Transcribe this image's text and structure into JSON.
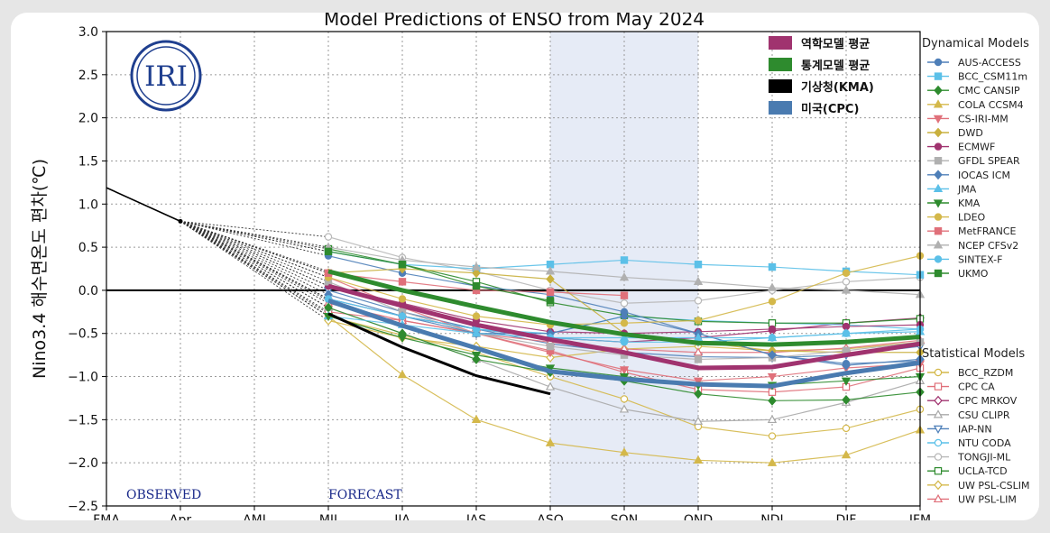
{
  "chart_data": {
    "type": "line",
    "title": "Model Predictions of ENSO from May 2024",
    "ylabel": "Nino3.4 해수면온도 편차(℃)",
    "xlabel": "",
    "categories": [
      "FMA",
      "Apr",
      "AMJ",
      "MJJ",
      "JJA",
      "JAS",
      "ASO",
      "SON",
      "OND",
      "NDJ",
      "DJF",
      "JFM"
    ],
    "ylim": [
      -2.5,
      3.0
    ],
    "yticks": [
      "3.0",
      "2.5",
      "2.0",
      "1.5",
      "1.0",
      "0.5",
      "0.0",
      "−0.5",
      "−1.0",
      "−1.5",
      "−2.0",
      "−2.5"
    ],
    "observed_label": "OBSERVED",
    "forecast_label": "FORECAST",
    "logo_text": "IRI",
    "highlight_range": [
      "ASO",
      "OND"
    ],
    "observed": {
      "x": [
        0,
        1
      ],
      "values": [
        1.19,
        0.8
      ]
    },
    "summary_series": [
      {
        "name": "역학모델 평균",
        "color": "#a0336f",
        "x": [
          3,
          4,
          5,
          6,
          7,
          8,
          9,
          10,
          11
        ],
        "values": [
          0.05,
          -0.18,
          -0.4,
          -0.57,
          -0.72,
          -0.9,
          -0.89,
          -0.75,
          -0.62
        ]
      },
      {
        "name": "통계모델 평균",
        "color": "#2e8b2e",
        "x": [
          3,
          4,
          5,
          6,
          7,
          8,
          9,
          10,
          11
        ],
        "values": [
          0.22,
          0.0,
          -0.19,
          -0.37,
          -0.51,
          -0.61,
          -0.63,
          -0.6,
          -0.54
        ]
      },
      {
        "name": "기상청(KMA)",
        "color": "#000000",
        "x": [
          3,
          4,
          5,
          6
        ],
        "values": [
          -0.27,
          -0.66,
          -0.99,
          -1.2
        ]
      },
      {
        "name": "미국(CPC)",
        "color": "#4a7bb0",
        "x": [
          3,
          4,
          5,
          6,
          7,
          8,
          9,
          10,
          11
        ],
        "values": [
          -0.12,
          -0.41,
          -0.67,
          -0.94,
          -1.03,
          -1.09,
          -1.11,
          -0.96,
          -0.84
        ]
      }
    ],
    "dynamical_title": "Dynamical Models",
    "dynamical": [
      {
        "name": "AUS-ACCESS",
        "color": "#4e7fb8",
        "marker": "o",
        "fill": true,
        "values": [
          0.4,
          0.2,
          0.05,
          -0.05,
          -0.25,
          -0.5,
          -0.75,
          -0.85,
          -0.82
        ]
      },
      {
        "name": "BCC_CSM11m",
        "color": "#5bc0e8",
        "marker": "s",
        "fill": true,
        "values": [
          0.45,
          0.3,
          0.25,
          0.3,
          0.35,
          0.3,
          0.27,
          0.22,
          0.18
        ]
      },
      {
        "name": "CMC CANSIP",
        "color": "#2e8b2e",
        "marker": "D",
        "fill": true,
        "values": [
          -0.2,
          -0.5,
          -0.8,
          -0.95,
          -1.05,
          -1.2,
          -1.28,
          -1.27,
          -1.18
        ]
      },
      {
        "name": "COLA CCSM4",
        "color": "#d4b84a",
        "marker": "^",
        "fill": true,
        "values": [
          -0.3,
          -0.98,
          -1.5,
          -1.77,
          -1.88,
          -1.97,
          -2.0,
          -1.91,
          -1.62
        ]
      },
      {
        "name": "CS-IRI-MM",
        "color": "#e0707a",
        "marker": "v",
        "fill": true,
        "values": [
          0.15,
          -0.2,
          -0.5,
          -0.72,
          -0.92,
          -1.05,
          -1.0,
          -0.9,
          -0.85
        ]
      },
      {
        "name": "DWD",
        "color": "#c9b03e",
        "marker": "D",
        "fill": true,
        "values": [
          0.2,
          0.25,
          0.2,
          0.13,
          -0.5,
          -0.6,
          -0.7,
          -0.72,
          -0.72
        ]
      },
      {
        "name": "ECMWF",
        "color": "#a0336f",
        "marker": "o",
        "fill": true,
        "values": [
          0.05,
          -0.15,
          -0.35,
          -0.48,
          -0.5,
          -0.48,
          -0.45,
          -0.42,
          -0.4
        ]
      },
      {
        "name": "GFDL SPEAR",
        "color": "#b0b0b0",
        "marker": "s",
        "fill": true,
        "values": [
          0.1,
          -0.25,
          -0.5,
          -0.65,
          -0.75,
          -0.8,
          -0.78,
          -0.7,
          -0.6
        ]
      },
      {
        "name": "IOCAS ICM",
        "color": "#4e7fb8",
        "marker": "D",
        "fill": true,
        "values": [
          -0.05,
          -0.3,
          -0.5,
          -0.5,
          -0.3,
          -0.5,
          -0.75,
          -0.87,
          -0.8
        ]
      },
      {
        "name": "JMA",
        "color": "#5bc0e8",
        "marker": "^",
        "fill": true,
        "values": [
          -0.3,
          -0.4,
          -0.5,
          -0.55,
          -0.55,
          -0.55,
          -0.55,
          -0.5,
          -0.48
        ]
      },
      {
        "name": "KMA",
        "color": "#2e8b2e",
        "marker": "v",
        "fill": true,
        "values": [
          -0.3,
          -0.55,
          -0.75,
          -0.9,
          -1.0,
          -1.1,
          -1.1,
          -1.05,
          -1.0
        ]
      },
      {
        "name": "LDEO",
        "color": "#d4b84a",
        "marker": "o",
        "fill": true,
        "values": [
          0.15,
          -0.1,
          -0.3,
          -0.4,
          -0.38,
          -0.35,
          -0.13,
          0.2,
          0.4
        ]
      },
      {
        "name": "MetFRANCE",
        "color": "#e0707a",
        "marker": "s",
        "fill": true,
        "values": [
          0.2,
          0.1,
          0.0,
          -0.02,
          -0.06
        ]
      },
      {
        "name": "NCEP CFSv2",
        "color": "#b0b0b0",
        "marker": "^",
        "fill": true,
        "values": [
          0.5,
          0.35,
          0.27,
          0.22,
          0.15,
          0.1,
          0.03,
          0.0,
          -0.05
        ]
      },
      {
        "name": "SINTEX-F",
        "color": "#5bc0e8",
        "marker": "o",
        "fill": true,
        "values": [
          -0.1,
          -0.3,
          -0.45,
          -0.55,
          -0.6,
          -0.6,
          -0.55,
          -0.5,
          -0.45
        ]
      },
      {
        "name": "UKMO",
        "color": "#2e8b2e",
        "marker": "s",
        "fill": true,
        "values": [
          0.45,
          0.3,
          0.05,
          -0.12
        ]
      }
    ],
    "statistical_title": "Statistical Models",
    "statistical": [
      {
        "name": "BCC_RZDM",
        "color": "#d4b84a",
        "marker": "o",
        "fill": false,
        "values": [
          -0.3,
          -0.52,
          -0.72,
          -1.0,
          -1.26,
          -1.58,
          -1.69,
          -1.6,
          -1.38
        ]
      },
      {
        "name": "CPC CA",
        "color": "#e0707a",
        "marker": "s",
        "fill": false,
        "values": [
          -0.25,
          -0.35,
          -0.5,
          -0.7,
          -0.95,
          -1.15,
          -1.18,
          -1.12,
          -0.9
        ]
      },
      {
        "name": "CPC MRKOV",
        "color": "#a0336f",
        "marker": "D",
        "fill": false,
        "values": [
          -0.1,
          -0.3,
          -0.45,
          -0.55,
          -0.6,
          -0.55,
          -0.47,
          -0.38,
          -0.32
        ]
      },
      {
        "name": "CSU CLIPR",
        "color": "#a8a8a8",
        "marker": "^",
        "fill": false,
        "values": [
          -0.2,
          -0.5,
          -0.8,
          -1.12,
          -1.38,
          -1.52,
          -1.5,
          -1.3,
          -1.05
        ]
      },
      {
        "name": "IAP-NN",
        "color": "#4e7fb8",
        "marker": "v",
        "fill": false,
        "values": [
          0.0,
          -0.25,
          -0.45,
          -0.62,
          -0.72,
          -0.77,
          -0.78,
          -0.75,
          -0.65
        ]
      },
      {
        "name": "NTU CODA",
        "color": "#5bc0e8",
        "marker": "o",
        "fill": false,
        "values": [
          -0.1,
          -0.3,
          -0.45,
          -0.5,
          -0.3,
          -0.35,
          -0.38,
          -0.4,
          -0.45
        ]
      },
      {
        "name": "TONGJI-ML",
        "color": "#b8b8b8",
        "marker": "o",
        "fill": false,
        "values": [
          0.62,
          0.38,
          0.22,
          0.0,
          -0.15,
          -0.12,
          0.0,
          0.1,
          0.15
        ]
      },
      {
        "name": "UCLA-TCD",
        "color": "#2e8b2e",
        "marker": "s",
        "fill": false,
        "values": [
          0.48,
          0.3,
          0.1,
          -0.14,
          -0.29,
          -0.36,
          -0.38,
          -0.38,
          -0.33
        ]
      },
      {
        "name": "UW PSL-CSLIM",
        "color": "#d4b84a",
        "marker": "D",
        "fill": false,
        "values": [
          -0.35,
          -0.55,
          -0.65,
          -0.78,
          -0.68,
          -0.65,
          -0.7,
          -0.68,
          -0.6
        ]
      },
      {
        "name": "UW PSL-LIM",
        "color": "#e0707a",
        "marker": "^",
        "fill": false,
        "values": [
          -0.15,
          -0.35,
          -0.5,
          -0.6,
          -0.68,
          -0.72,
          -0.72,
          -0.67,
          -0.58
        ]
      }
    ]
  }
}
